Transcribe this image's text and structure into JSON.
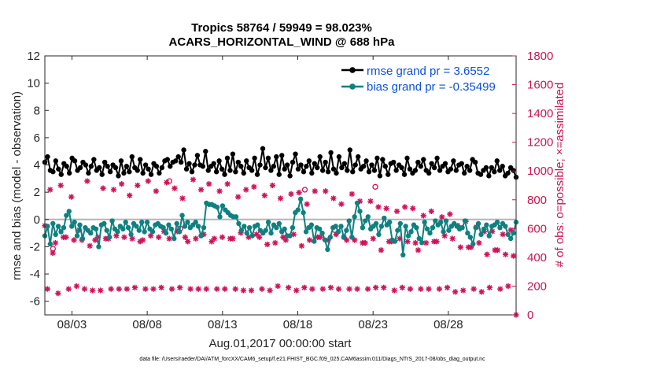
{
  "chart_data": {
    "type": "line",
    "title": "Tropics 58764 / 59949 = 98.023%",
    "subtitle": "ACARS_HORIZONTAL_WIND @ 688 hPa",
    "xlabel": "Aug.01,2017 00:00:00 start",
    "ylabel": "rmse and bias (model - observation)",
    "ylabel_right": "# of obs: o=possible; ×=assimilated",
    "footer": "data file: /Users/raeder/DAI/ATM_forcXX/CAM6_setup/f.e21.FHIST_BGC.f09_025.CAM6assim.011/Diags_NTrS_2017-08/obs_diag_output.nc",
    "x_range_days": [
      0.2,
      31.5
    ],
    "ylim": [
      -7,
      12
    ],
    "ylim_right": [
      0,
      1800
    ],
    "x_ticks": [
      {
        "day": 2,
        "label": "08/03"
      },
      {
        "day": 7,
        "label": "08/08"
      },
      {
        "day": 12,
        "label": "08/13"
      },
      {
        "day": 17,
        "label": "08/18"
      },
      {
        "day": 22,
        "label": "08/23"
      },
      {
        "day": 27,
        "label": "08/28"
      }
    ],
    "y_ticks": [
      12,
      10,
      8,
      6,
      4,
      2,
      0,
      -2,
      -4,
      -6
    ],
    "y_ticks_right": [
      1800,
      1600,
      1400,
      1200,
      1000,
      800,
      600,
      400,
      200,
      0
    ],
    "colors": {
      "rmse": "#000000",
      "bias": "#0f8080",
      "obs": "#d0135a",
      "zero": "#b4b4b4"
    },
    "legend": [
      {
        "key": "rmse",
        "label": "rmse grand pr = 3.6552"
      },
      {
        "key": "bias",
        "label": "bias grand pr = -0.35499"
      }
    ],
    "series": [
      {
        "name": "rmse",
        "values": [
          4.2,
          4.6,
          3.6,
          3.5,
          4.3,
          3.7,
          3.3,
          4.1,
          3.9,
          3.4,
          4.5,
          4.3,
          3.6,
          3.8,
          4.2,
          4.0,
          3.4,
          3.9,
          4.4,
          3.6,
          3.8,
          3.3,
          4.2,
          3.9,
          3.5,
          4.0,
          3.8,
          3.2,
          4.3,
          3.4,
          3.9,
          3.5,
          4.6,
          3.8,
          3.6,
          4.4,
          3.4,
          4.0,
          3.7,
          3.3,
          4.1,
          3.9,
          3.4,
          3.8,
          4.3,
          4.4,
          3.9,
          4.2,
          4.3,
          4.6,
          4.2,
          5.1,
          3.7,
          4.1,
          3.5,
          4.0,
          4.7,
          4.0,
          3.9,
          5.0,
          3.6,
          3.9,
          4.1,
          3.5,
          4.3,
          3.7,
          3.3,
          4.5,
          3.6,
          4.8,
          3.5,
          4.2,
          3.9,
          3.4,
          4.3,
          3.8,
          3.6,
          4.5,
          3.3,
          4.0,
          5.2,
          3.8,
          4.5,
          3.6,
          3.9,
          4.6,
          3.3,
          4.7,
          3.7,
          4.0,
          3.2,
          4.2,
          4.8,
          3.7,
          4.0,
          3.5,
          3.9,
          4.3,
          3.4,
          4.1,
          3.8,
          4.6,
          3.6,
          4.2,
          3.5,
          4.9,
          3.7,
          3.4,
          4.6,
          3.8,
          4.1,
          3.6,
          5.1,
          3.5,
          4.0,
          4.6,
          3.7,
          3.9,
          4.3,
          3.5,
          4.0,
          3.6,
          4.5,
          3.2,
          4.4,
          3.9,
          3.3,
          4.1,
          4.2,
          3.6,
          4.0,
          3.8,
          3.3,
          4.5,
          3.7,
          3.4,
          3.6,
          4.2,
          3.9,
          4.4,
          3.6,
          3.4,
          4.1,
          3.8,
          4.5,
          3.6,
          3.9,
          4.1,
          3.5,
          3.7,
          4.3,
          3.6,
          4.0,
          4.1,
          3.4,
          3.9,
          3.6,
          4.4,
          4.2,
          3.4,
          3.3,
          3.6,
          3.8,
          3.2,
          3.8,
          3.5,
          4.3,
          3.6,
          3.9,
          3.2,
          3.4,
          3.8,
          3.6,
          3.1
        ]
      },
      {
        "name": "bias",
        "values": [
          -1.2,
          -0.5,
          -1.8,
          -0.3,
          -1.1,
          -0.5,
          -0.9,
          -0.6,
          0.3,
          0.6,
          -0.5,
          -0.2,
          -1.2,
          -0.4,
          -1.4,
          -0.6,
          -0.8,
          -1.0,
          -0.6,
          -0.7,
          -2.0,
          -0.4,
          -0.3,
          -0.8,
          -1.3,
          -0.1,
          -0.7,
          -0.9,
          -0.5,
          -0.7,
          -0.2,
          -0.6,
          -1.1,
          -0.3,
          -0.5,
          -0.8,
          -0.2,
          -0.9,
          -0.2,
          -0.7,
          -0.9,
          -0.4,
          -0.3,
          -0.5,
          -0.6,
          -1.0,
          -0.4,
          -0.7,
          -1.4,
          -0.3,
          -0.9,
          0.3,
          -0.5,
          -0.2,
          -0.6,
          -0.4,
          -0.2,
          -0.5,
          -1.2,
          -0.6,
          1.2,
          1.1,
          1.1,
          1.0,
          0.9,
          0.2,
          1.0,
          0.7,
          0.5,
          0.3,
          0.2,
          0.2,
          -0.3,
          -0.8,
          -0.5,
          -1.0,
          -0.6,
          -1.2,
          -0.5,
          -0.4,
          -0.8,
          -1.0,
          -0.8,
          -0.2,
          -1.0,
          -0.4,
          -0.6,
          -0.3,
          -0.9,
          -0.7,
          -1.2,
          -1.2,
          -0.6,
          0.5,
          0.7,
          1.5,
          0.5,
          -0.9,
          -0.6,
          -0.4,
          -1.6,
          -0.6,
          -0.7,
          -1.0,
          -1.5,
          -2.2,
          -1.3,
          -0.6,
          -0.5,
          -0.9,
          -0.5,
          -1.3,
          -0.8,
          -0.1,
          -1.3,
          0.2,
          1.2,
          0.6,
          -0.6,
          -0.1,
          0.2,
          -0.7,
          -0.5,
          -0.3,
          -1.1,
          -0.5,
          0.1,
          -0.4,
          -0.2,
          -1.5,
          -1.6,
          -0.8,
          -0.3,
          -2.6,
          -0.5,
          -1.2,
          -0.9,
          -0.4,
          -0.6,
          -1.4,
          -1.7,
          -0.2,
          -0.7,
          -1.0,
          -0.6,
          -0.1,
          -0.4,
          -0.2,
          -0.9,
          -0.1,
          -0.8,
          -0.5,
          -0.3,
          -0.5,
          -0.7,
          -0.6,
          -0.1,
          -1.0,
          -1.3,
          -1.8,
          -0.6,
          -0.3,
          -1.1,
          -0.7,
          -0.4,
          -1.2,
          -0.5,
          -0.4,
          -0.2,
          -0.6,
          -0.3,
          -0.5,
          -1.1,
          -1.4,
          -1.0,
          -0.2
        ]
      },
      {
        "name": "obs_count",
        "values": [
          620,
          180,
          870,
          430,
          500,
          150,
          900,
          540,
          540,
          180,
          820,
          520,
          200,
          590,
          520,
          180,
          930,
          480,
          170,
          520,
          540,
          170,
          880,
          530,
          530,
          180,
          870,
          550,
          180,
          910,
          540,
          180,
          830,
          530,
          190,
          900,
          510,
          520,
          180,
          930,
          550,
          180,
          860,
          540,
          190,
          580,
          920,
          530,
          180,
          880,
          580,
          190,
          810,
          540,
          510,
          180,
          940,
          530,
          180,
          870,
          560,
          180,
          910,
          510,
          530,
          180,
          860,
          540,
          180,
          910,
          530,
          530,
          180,
          820,
          570,
          170,
          870,
          540,
          170,
          890,
          560,
          540,
          180,
          830,
          490,
          170,
          900,
          500,
          200,
          810,
          540,
          520,
          190,
          840,
          560,
          170,
          850,
          480,
          190,
          770,
          520,
          180,
          860,
          540,
          540,
          180,
          860,
          520,
          190,
          810,
          560,
          180,
          770,
          540,
          520,
          180,
          840,
          520,
          180,
          790,
          500,
          500,
          180,
          790,
          530,
          190,
          750,
          450,
          190,
          740,
          510,
          510,
          170,
          720,
          530,
          190,
          750,
          510,
          180,
          740,
          500,
          450,
          180,
          690,
          500,
          180,
          720,
          510,
          510,
          180,
          680,
          550,
          190,
          700,
          530,
          160,
          620,
          470,
          170,
          650,
          470,
          470,
          180,
          610,
          500,
          160,
          580,
          420,
          190,
          580,
          450,
          450,
          180,
          560,
          420,
          200,
          590,
          410,
          0
        ]
      },
      {
        "name": "obs_possible",
        "values": [
          null,
          null,
          null,
          460,
          null,
          null,
          null,
          null,
          null,
          null,
          null,
          null,
          null,
          null,
          null,
          null,
          null,
          null,
          null,
          null,
          null,
          null,
          null,
          null,
          null,
          null,
          null,
          null,
          null,
          null,
          null,
          null,
          null,
          null,
          null,
          null,
          null,
          null,
          null,
          null,
          null,
          null,
          null,
          null,
          null,
          null,
          930,
          null,
          null,
          null,
          600,
          null,
          null,
          null,
          null,
          null,
          null,
          null,
          null,
          null,
          null,
          null,
          null,
          null,
          null,
          null,
          null,
          null,
          null,
          null,
          null,
          null,
          null,
          null,
          null,
          null,
          null,
          null,
          null,
          null,
          null,
          null,
          null,
          null,
          null,
          null,
          null,
          null,
          null,
          null,
          null,
          null,
          null,
          null,
          null,
          null,
          870,
          null,
          null,
          null,
          null,
          null,
          null,
          null,
          null,
          null,
          null,
          590,
          null,
          null,
          null,
          null,
          null,
          null,
          null,
          null,
          null,
          null,
          null,
          null,
          null,
          null,
          890,
          null,
          null,
          null,
          null,
          null,
          null,
          null,
          null,
          null,
          null,
          null,
          null,
          null,
          null,
          null,
          null,
          null,
          null,
          null,
          null,
          null,
          null,
          null,
          null,
          null,
          null,
          null,
          null,
          null,
          null,
          null,
          null,
          null,
          null,
          null,
          null,
          null,
          null,
          null,
          null,
          null,
          null,
          null,
          null,
          null,
          null,
          null,
          null,
          null,
          null,
          null,
          null
        ]
      }
    ]
  }
}
